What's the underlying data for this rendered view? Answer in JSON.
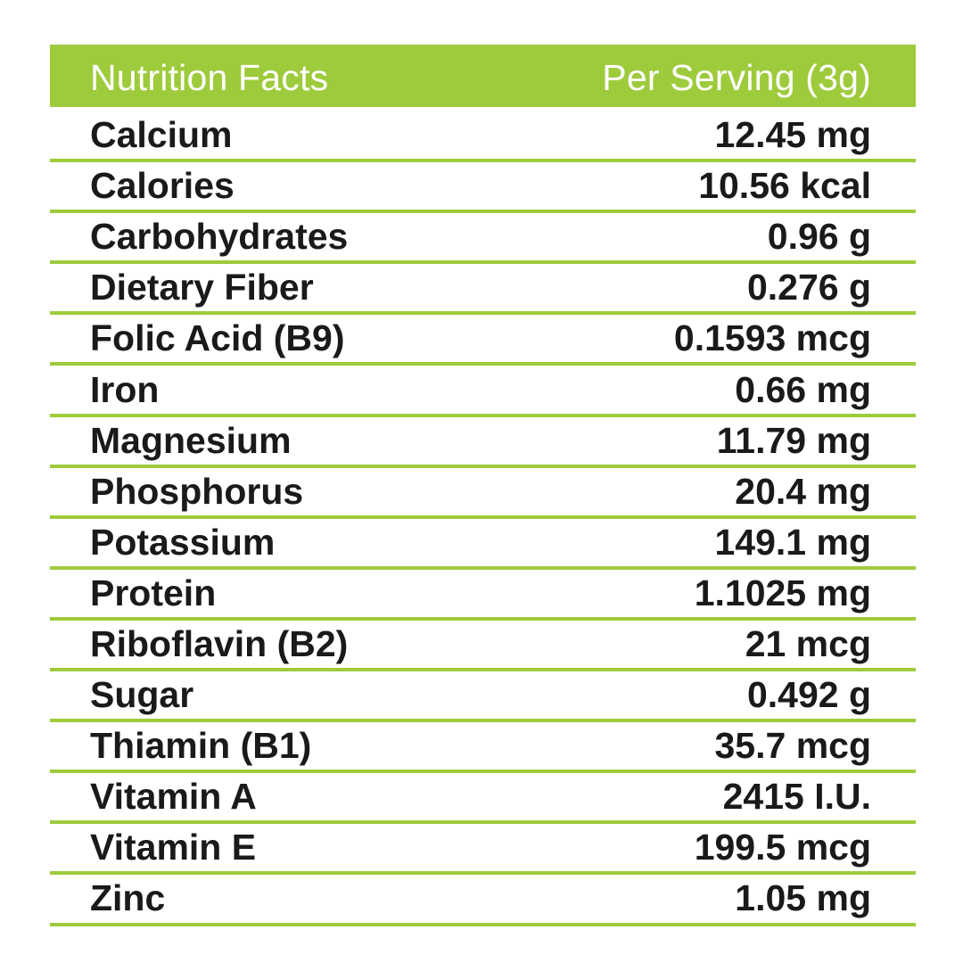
{
  "header": {
    "title": "Nutrition Facts",
    "serving": "Per Serving (3g)"
  },
  "rows": [
    {
      "name": "Calcium",
      "value": "12.45 mg"
    },
    {
      "name": "Calories",
      "value": "10.56 kcal"
    },
    {
      "name": "Carbohydrates",
      "value": "0.96 g"
    },
    {
      "name": "Dietary Fiber",
      "value": "0.276 g"
    },
    {
      "name": "Folic Acid (B9)",
      "value": "0.1593 mcg"
    },
    {
      "name": "Iron",
      "value": "0.66 mg"
    },
    {
      "name": "Magnesium",
      "value": "11.79 mg"
    },
    {
      "name": "Phosphorus",
      "value": "20.4 mg"
    },
    {
      "name": "Potassium",
      "value": "149.1 mg"
    },
    {
      "name": "Protein",
      "value": "1.1025 mg"
    },
    {
      "name": "Riboflavin (B2)",
      "value": "21 mcg"
    },
    {
      "name": "Sugar",
      "value": "0.492 g"
    },
    {
      "name": "Thiamin (B1)",
      "value": "35.7 mcg"
    },
    {
      "name": "Vitamin A",
      "value": "2415 I.U."
    },
    {
      "name": "Vitamin E",
      "value": "199.5 mcg"
    },
    {
      "name": "Zinc",
      "value": "1.05 mg"
    }
  ],
  "colors": {
    "accent": "#9ecb3c",
    "text": "#1a1a1a",
    "header_text": "#ffffff"
  }
}
